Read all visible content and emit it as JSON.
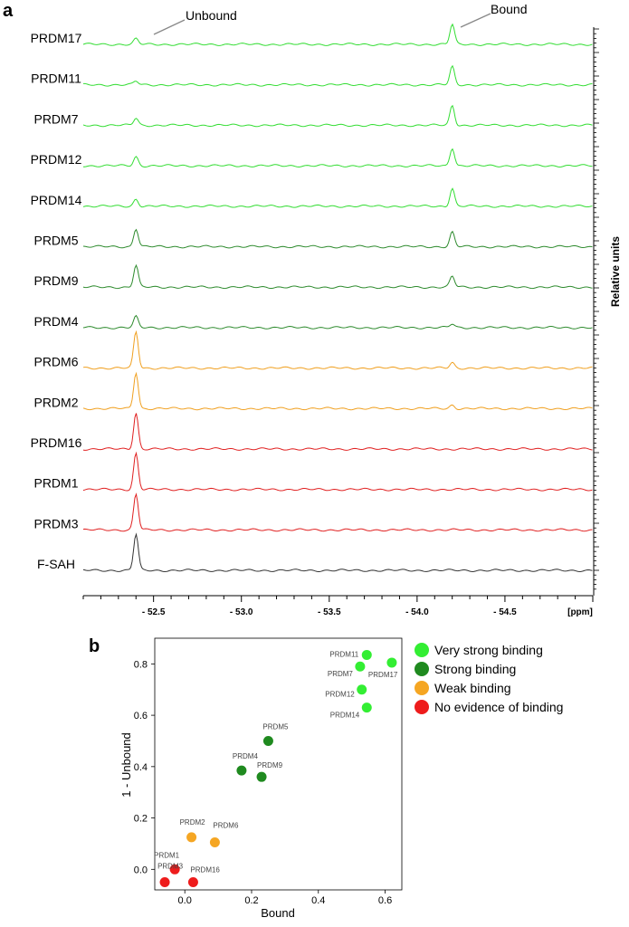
{
  "panel_a": {
    "panel_label": "a",
    "peak_labels": {
      "unbound": "Unbound",
      "bound": "Bound"
    },
    "y_axis_label": "Relative units",
    "colors": {
      "very_strong": "#33dd33",
      "strong": "#2e8b2e",
      "weak": "#f0a020",
      "none": "#e02020",
      "reference": "#333333"
    }
  },
  "panel_b": {
    "panel_label": "b"
  },
  "chart_data": [
    {
      "type": "line",
      "title": "",
      "xlabel": "[ppm]",
      "ylabel": "Relative units",
      "x_ticks": [
        "- 52.5",
        "- 53.0",
        "- 53.5",
        "- 54.0",
        "- 54.5"
      ],
      "x_tick_values": [
        -52.5,
        -53.0,
        -53.5,
        -54.0,
        -54.5
      ],
      "xlim": [
        -52.1,
        -55.0
      ],
      "peak_positions_ppm": {
        "unbound": -52.4,
        "bound": -54.2
      },
      "series": [
        {
          "name": "PRDM17",
          "group": "very_strong",
          "unbound_height": 0.15,
          "bound_height": 0.55
        },
        {
          "name": "PRDM11",
          "group": "very_strong",
          "unbound_height": 0.1,
          "bound_height": 0.5
        },
        {
          "name": "PRDM7",
          "group": "very_strong",
          "unbound_height": 0.2,
          "bound_height": 0.55
        },
        {
          "name": "PRDM12",
          "group": "very_strong",
          "unbound_height": 0.25,
          "bound_height": 0.5
        },
        {
          "name": "PRDM14",
          "group": "very_strong",
          "unbound_height": 0.2,
          "bound_height": 0.5
        },
        {
          "name": "PRDM5",
          "group": "strong",
          "unbound_height": 0.5,
          "bound_height": 0.4
        },
        {
          "name": "PRDM9",
          "group": "strong",
          "unbound_height": 0.6,
          "bound_height": 0.3
        },
        {
          "name": "PRDM4",
          "group": "strong",
          "unbound_height": 0.3,
          "bound_height": 0.1
        },
        {
          "name": "PRDM6",
          "group": "weak",
          "unbound_height": 1.0,
          "bound_height": 0.15
        },
        {
          "name": "PRDM2",
          "group": "weak",
          "unbound_height": 1.0,
          "bound_height": 0.1
        },
        {
          "name": "PRDM16",
          "group": "none",
          "unbound_height": 1.0,
          "bound_height": 0.0
        },
        {
          "name": "PRDM1",
          "group": "none",
          "unbound_height": 1.0,
          "bound_height": 0.0
        },
        {
          "name": "PRDM3",
          "group": "none",
          "unbound_height": 1.0,
          "bound_height": 0.0
        },
        {
          "name": "F-SAH",
          "group": "reference",
          "unbound_height": 1.0,
          "bound_height": 0.0
        }
      ]
    },
    {
      "type": "scatter",
      "title": "",
      "xlabel": "Bound",
      "ylabel": "1 - Unbound",
      "xlim": [
        -0.09,
        0.65
      ],
      "ylim": [
        -0.08,
        0.9
      ],
      "x_ticks": [
        0.0,
        0.2,
        0.4,
        0.6
      ],
      "y_ticks": [
        0.0,
        0.2,
        0.4,
        0.6,
        0.8
      ],
      "x_tick_labels": [
        "0.0",
        "0.2",
        "0.4",
        "0.6"
      ],
      "y_tick_labels": [
        "0.0",
        "0.2",
        "0.4",
        "0.6",
        "0.8"
      ],
      "legend": [
        {
          "label": "Very strong binding",
          "color": "#33ee33"
        },
        {
          "label": "Strong binding",
          "color": "#1f8a1f"
        },
        {
          "label": "Weak binding",
          "color": "#f5a623"
        },
        {
          "label": "No evidence of binding",
          "color": "#ee1c1c"
        }
      ],
      "legend_position": "right",
      "points": [
        {
          "name": "PRDM11",
          "x": 0.545,
          "y": 0.835,
          "color": "#33ee33"
        },
        {
          "name": "PRDM7",
          "x": 0.525,
          "y": 0.79,
          "color": "#33ee33"
        },
        {
          "name": "PRDM17",
          "x": 0.62,
          "y": 0.805,
          "color": "#33ee33"
        },
        {
          "name": "PRDM12",
          "x": 0.53,
          "y": 0.7,
          "color": "#33ee33"
        },
        {
          "name": "PRDM14",
          "x": 0.545,
          "y": 0.63,
          "color": "#33ee33"
        },
        {
          "name": "PRDM5",
          "x": 0.25,
          "y": 0.5,
          "color": "#1f8a1f"
        },
        {
          "name": "PRDM4",
          "x": 0.17,
          "y": 0.385,
          "color": "#1f8a1f"
        },
        {
          "name": "PRDM9",
          "x": 0.23,
          "y": 0.36,
          "color": "#1f8a1f"
        },
        {
          "name": "PRDM2",
          "x": 0.02,
          "y": 0.125,
          "color": "#f5a623"
        },
        {
          "name": "PRDM6",
          "x": 0.09,
          "y": 0.105,
          "color": "#f5a623"
        },
        {
          "name": "PRDM1",
          "x": -0.03,
          "y": 0.0,
          "color": "#ee1c1c"
        },
        {
          "name": "PRDM3",
          "x": -0.06,
          "y": -0.05,
          "color": "#ee1c1c"
        },
        {
          "name": "PRDM16",
          "x": 0.025,
          "y": -0.05,
          "color": "#ee1c1c"
        }
      ]
    }
  ]
}
